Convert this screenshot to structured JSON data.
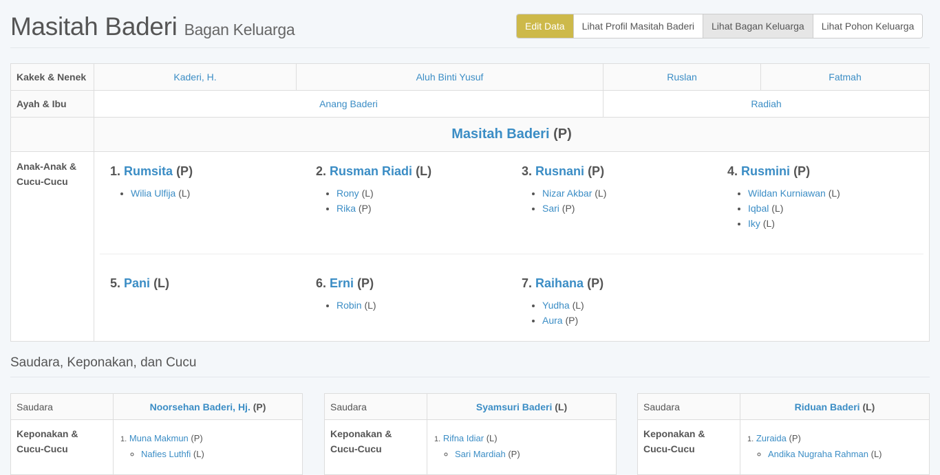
{
  "header": {
    "name": "Masitah Baderi",
    "subtitle": "Bagan Keluarga"
  },
  "buttons": {
    "edit": "Edit Data",
    "profile": "Lihat Profil Masitah Baderi",
    "chart": "Lihat Bagan Keluarga",
    "tree": "Lihat Pohon Keluarga"
  },
  "grandparents": {
    "label": "Kakek & Nenek",
    "names": [
      "Kaderi, H.",
      "Aluh Binti Yusuf",
      "Ruslan",
      "Fatmah"
    ]
  },
  "parents": {
    "label": "Ayah & Ibu",
    "father": "Anang Baderi",
    "mother": "Radiah"
  },
  "self": {
    "name": "Masitah Baderi",
    "gender": "(P)"
  },
  "children": {
    "label": "Anak-Anak & Cucu-Cucu",
    "items": [
      {
        "num": "1.",
        "name": "Rumsita",
        "gender": "(P)",
        "kids": [
          {
            "name": "Wilia Ulfija",
            "gender": "(L)"
          }
        ]
      },
      {
        "num": "2.",
        "name": "Rusman Riadi",
        "gender": "(L)",
        "kids": [
          {
            "name": "Rony",
            "gender": "(L)"
          },
          {
            "name": "Rika",
            "gender": "(P)"
          }
        ]
      },
      {
        "num": "3.",
        "name": "Rusnani",
        "gender": "(P)",
        "kids": [
          {
            "name": "Nizar Akbar",
            "gender": "(L)"
          },
          {
            "name": "Sari",
            "gender": "(P)"
          }
        ]
      },
      {
        "num": "4.",
        "name": "Rusmini",
        "gender": "(P)",
        "kids": [
          {
            "name": "Wildan Kurniawan",
            "gender": "(L)"
          },
          {
            "name": "Iqbal",
            "gender": "(L)"
          },
          {
            "name": "Iky",
            "gender": "(L)"
          }
        ]
      },
      {
        "num": "5.",
        "name": "Pani",
        "gender": "(L)",
        "kids": []
      },
      {
        "num": "6.",
        "name": "Erni",
        "gender": "(P)",
        "kids": [
          {
            "name": "Robin",
            "gender": "(L)"
          }
        ]
      },
      {
        "num": "7.",
        "name": "Raihana",
        "gender": "(P)",
        "kids": [
          {
            "name": "Yudha",
            "gender": "(L)"
          },
          {
            "name": "Aura",
            "gender": "(P)"
          }
        ]
      }
    ]
  },
  "siblings_section": {
    "title": "Saudara, Keponakan, dan Cucu",
    "sibling_label": "Saudara",
    "nephew_label": "Keponakan & Cucu-Cucu",
    "items": [
      {
        "name": "Noorsehan Baderi, Hj.",
        "gender": "(P)",
        "children": [
          {
            "num": "1.",
            "name": "Muna Makmun",
            "gender": "(P)",
            "kids": [
              {
                "name": "Nafies Luthfi",
                "gender": "(L)"
              }
            ]
          }
        ]
      },
      {
        "name": "Syamsuri Baderi",
        "gender": "(L)",
        "children": [
          {
            "num": "1.",
            "name": "Rifna Idiar",
            "gender": "(L)",
            "kids": [
              {
                "name": "Sari Mardiah",
                "gender": "(P)"
              }
            ]
          }
        ]
      },
      {
        "name": "Riduan Baderi",
        "gender": "(L)",
        "children": [
          {
            "num": "1.",
            "name": "Zuraida",
            "gender": "(P)",
            "kids": [
              {
                "name": "Andika Nugraha Rahman",
                "gender": "(L)"
              }
            ]
          }
        ]
      }
    ]
  }
}
